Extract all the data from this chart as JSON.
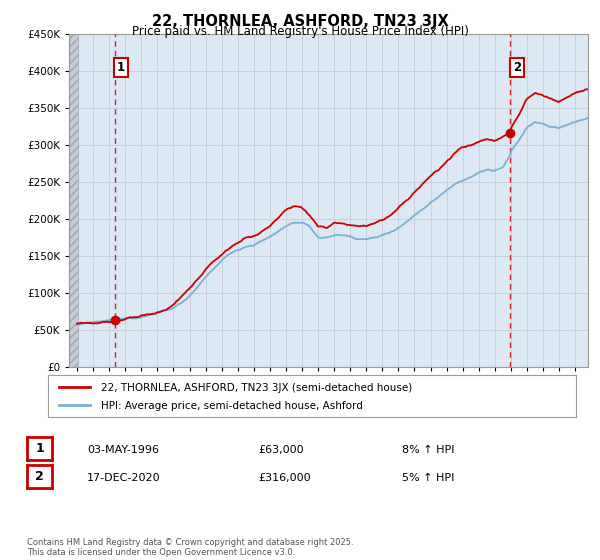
{
  "title": "22, THORNLEA, ASHFORD, TN23 3JX",
  "subtitle": "Price paid vs. HM Land Registry's House Price Index (HPI)",
  "legend_entry1": "22, THORNLEA, ASHFORD, TN23 3JX (semi-detached house)",
  "legend_entry2": "HPI: Average price, semi-detached house, Ashford",
  "annotation1_date": "03-MAY-1996",
  "annotation1_price": "£63,000",
  "annotation1_hpi": "8% ↑ HPI",
  "annotation1_year": 1996.37,
  "annotation1_value": 63000,
  "annotation2_date": "17-DEC-2020",
  "annotation2_price": "£316,000",
  "annotation2_hpi": "5% ↑ HPI",
  "annotation2_year": 2020.96,
  "annotation2_value": 316000,
  "copyright": "Contains HM Land Registry data © Crown copyright and database right 2025.\nThis data is licensed under the Open Government Licence v3.0.",
  "ylim": [
    0,
    450000
  ],
  "xlim_start": 1993.5,
  "xlim_end": 2025.8,
  "hpi_color": "#7ab0d4",
  "price_color": "#cc0000",
  "dashed_line_color": "#cc0000",
  "grid_color": "#c8d0dc",
  "bg_color": "#dce8f4",
  "hatch_color": "#c8ccd8"
}
